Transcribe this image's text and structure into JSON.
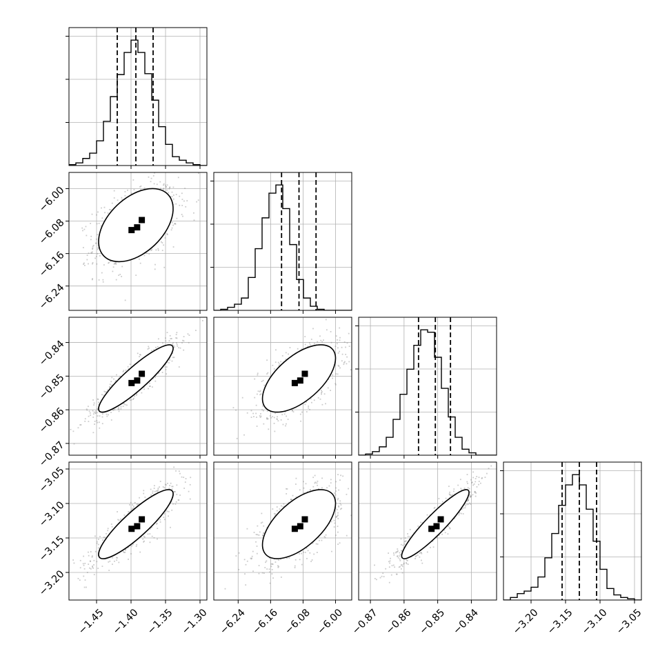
{
  "chart_data": {
    "type": "corner",
    "title": "",
    "grid": true,
    "parameters": [
      {
        "index": 0,
        "range": [
          -1.49,
          -1.29
        ],
        "ticks": [
          -1.45,
          -1.4,
          -1.35,
          -1.3
        ],
        "tick_labels": [
          "−1.45",
          "−1.40",
          "−1.35",
          "−1.30"
        ],
        "mean": -1.393,
        "std": 0.027,
        "quantiles": [
          -1.42,
          -1.393,
          -1.368
        ]
      },
      {
        "index": 1,
        "range": [
          -6.3,
          -5.96
        ],
        "ticks": [
          -6.24,
          -6.16,
          -6.08,
          -6.0
        ],
        "tick_labels": [
          "−6.24",
          "−6.16",
          "−6.08",
          "−6.00"
        ],
        "mean": -6.09,
        "std": 0.045,
        "quantiles": [
          -6.133,
          -6.09,
          -6.048
        ]
      },
      {
        "index": 2,
        "range": [
          -0.8735,
          -0.8325
        ],
        "ticks": [
          -0.87,
          -0.86,
          -0.85,
          -0.84
        ],
        "tick_labels": [
          "−0.87",
          "−0.86",
          "−0.85",
          "−0.84"
        ],
        "mean": -0.8507,
        "std": 0.005,
        "quantiles": [
          -0.8557,
          -0.8507,
          -0.8462
        ]
      },
      {
        "index": 3,
        "range": [
          -3.24,
          -3.04
        ],
        "ticks": [
          -3.2,
          -3.15,
          -3.1,
          -3.05
        ],
        "tick_labels": [
          "−3.20",
          "−3.15",
          "−3.10",
          "−3.05"
        ],
        "mean": -3.13,
        "std": 0.025,
        "quantiles": [
          -3.155,
          -3.13,
          -3.105
        ]
      }
    ],
    "correlations": [
      {
        "row": 1,
        "col": 0,
        "rho": 0.45
      },
      {
        "row": 2,
        "col": 0,
        "rho": 0.9
      },
      {
        "row": 2,
        "col": 1,
        "rho": 0.6
      },
      {
        "row": 3,
        "col": 0,
        "rho": 0.88
      },
      {
        "row": 3,
        "col": 1,
        "rho": 0.6
      },
      {
        "row": 3,
        "col": 2,
        "rho": 0.92
      }
    ],
    "histograms": [
      {
        "param": 0,
        "counts": [
          1,
          3,
          8,
          14,
          28,
          50,
          78,
          103,
          128,
          142,
          128,
          104,
          74,
          44,
          24,
          10,
          6,
          3,
          1,
          0
        ]
      },
      {
        "param": 1,
        "counts": [
          0,
          1,
          3,
          6,
          12,
          32,
          60,
          90,
          114,
          122,
          99,
          64,
          30,
          12,
          4,
          1,
          0,
          0,
          0,
          0
        ]
      },
      {
        "param": 2,
        "counts": [
          0,
          1,
          3,
          7,
          15,
          30,
          51,
          72,
          92,
          105,
          103,
          82,
          56,
          32,
          15,
          5,
          2,
          0,
          0,
          0
        ]
      },
      {
        "param": 3,
        "counts": [
          0,
          2,
          5,
          7,
          10,
          18,
          33,
          52,
          74,
          90,
          98,
          90,
          71,
          46,
          24,
          9,
          4,
          2,
          1,
          0
        ]
      }
    ],
    "contour_levels": [
      0.118,
      0.393,
      0.675,
      0.865
    ],
    "colors": {
      "contour_fill": [
        "#ffffff",
        "#e6e6e6",
        "#b8b8b8",
        "#7a7a7a"
      ],
      "points": "#8c8c8c",
      "peak": "#000000"
    }
  }
}
